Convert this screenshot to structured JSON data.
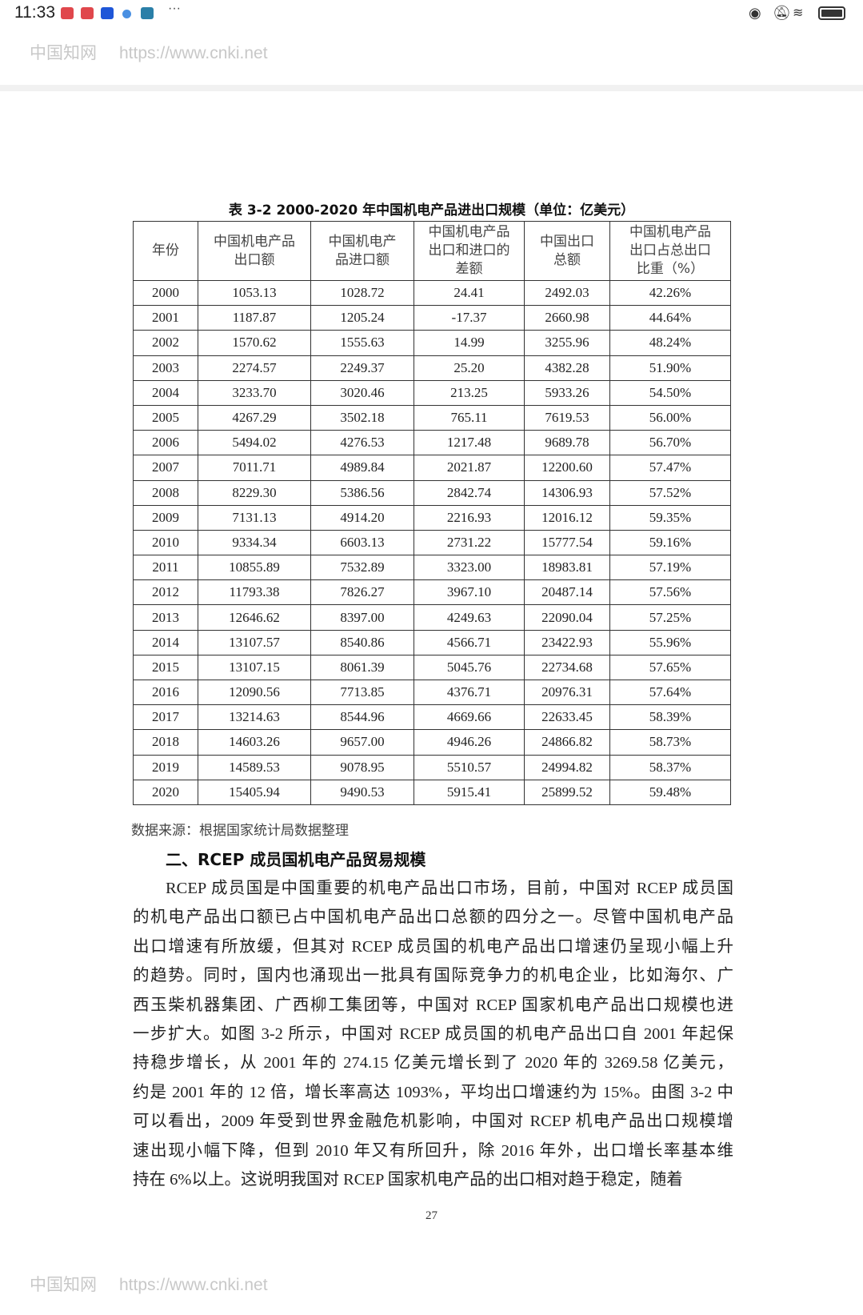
{
  "status_bar": {
    "time": "11:33",
    "more": "···",
    "notification_icons": [
      "red-app-icon",
      "red-app-icon",
      "blue-app-icon",
      "browser-icon",
      "green-app-icon"
    ],
    "system_icons": [
      "eye-icon",
      "bell-muted-icon",
      "wifi-icon",
      "battery-icon"
    ]
  },
  "watermark": {
    "site_name": "中国知网",
    "url": "https://www.cnki.net"
  },
  "table": {
    "caption": "表 3-2 2000-2020 年中国机电产品进出口规模（单位：亿美元）",
    "headers": [
      [
        "年份"
      ],
      [
        "中国机电产品",
        "出口额"
      ],
      [
        "中国机电产",
        "品进口额"
      ],
      [
        "中国机电产品",
        "出口和进口的",
        "差额"
      ],
      [
        "中国出口",
        "总额"
      ],
      [
        "中国机电产品",
        "出口占总出口",
        "比重（%）"
      ]
    ],
    "rows": [
      [
        "2000",
        "1053.13",
        "1028.72",
        "24.41",
        "2492.03",
        "42.26%"
      ],
      [
        "2001",
        "1187.87",
        "1205.24",
        "-17.37",
        "2660.98",
        "44.64%"
      ],
      [
        "2002",
        "1570.62",
        "1555.63",
        "14.99",
        "3255.96",
        "48.24%"
      ],
      [
        "2003",
        "2274.57",
        "2249.37",
        "25.20",
        "4382.28",
        "51.90%"
      ],
      [
        "2004",
        "3233.70",
        "3020.46",
        "213.25",
        "5933.26",
        "54.50%"
      ],
      [
        "2005",
        "4267.29",
        "3502.18",
        "765.11",
        "7619.53",
        "56.00%"
      ],
      [
        "2006",
        "5494.02",
        "4276.53",
        "1217.48",
        "9689.78",
        "56.70%"
      ],
      [
        "2007",
        "7011.71",
        "4989.84",
        "2021.87",
        "12200.60",
        "57.47%"
      ],
      [
        "2008",
        "8229.30",
        "5386.56",
        "2842.74",
        "14306.93",
        "57.52%"
      ],
      [
        "2009",
        "7131.13",
        "4914.20",
        "2216.93",
        "12016.12",
        "59.35%"
      ],
      [
        "2010",
        "9334.34",
        "6603.13",
        "2731.22",
        "15777.54",
        "59.16%"
      ],
      [
        "2011",
        "10855.89",
        "7532.89",
        "3323.00",
        "18983.81",
        "57.19%"
      ],
      [
        "2012",
        "11793.38",
        "7826.27",
        "3967.10",
        "20487.14",
        "57.56%"
      ],
      [
        "2013",
        "12646.62",
        "8397.00",
        "4249.63",
        "22090.04",
        "57.25%"
      ],
      [
        "2014",
        "13107.57",
        "8540.86",
        "4566.71",
        "23422.93",
        "55.96%"
      ],
      [
        "2015",
        "13107.15",
        "8061.39",
        "5045.76",
        "22734.68",
        "57.65%"
      ],
      [
        "2016",
        "12090.56",
        "7713.85",
        "4376.71",
        "20976.31",
        "57.64%"
      ],
      [
        "2017",
        "13214.63",
        "8544.96",
        "4669.66",
        "22633.45",
        "58.39%"
      ],
      [
        "2018",
        "14603.26",
        "9657.00",
        "4946.26",
        "24866.82",
        "58.73%"
      ],
      [
        "2019",
        "14589.53",
        "9078.95",
        "5510.57",
        "24994.82",
        "58.37%"
      ],
      [
        "2020",
        "15405.94",
        "9490.53",
        "5915.41",
        "25899.52",
        "59.48%"
      ]
    ],
    "source": "数据来源：根据国家统计局数据整理"
  },
  "section_heading": "二、RCEP 成员国机电产品贸易规模",
  "paragraph_lines": [
    "RCEP 成员国是中国重要的机电产品出口市场，目前，中国对 RCEP 成员国",
    "的机电产品出口额已占中国机电产品出口总额的四分之一。尽管中国机电产品",
    "出口增速有所放缓，但其对 RCEP 成员国的机电产品出口增速仍呈现小幅上升",
    "的趋势。同时，国内也涌现出一批具有国际竞争力的机电企业，比如海尔、广",
    "西玉柴机器集团、广西柳工集团等，中国对 RCEP 国家机电产品出口规模也进",
    "一步扩大。如图 3-2 所示，中国对 RCEP 成员国的机电产品出口自 2001 年起保",
    "持稳步增长，从 2001 年的 274.15 亿美元增长到了 2020 年的 3269.58 亿美元，",
    "约是 2001 年的 12 倍，增长率高达 1093%，平均出口增速约为 15%。由图 3-2 中",
    "可以看出，2009 年受到世界金融危机影响，中国对 RCEP 机电产品出口规模增",
    "速出现小幅下降，但到 2010 年又有所回升，除 2016 年外，出口增长率基本维",
    "持在 6%以上。这说明我国对 RCEP 国家机电产品的出口相对趋于稳定，随着"
  ],
  "page_number": "27"
}
